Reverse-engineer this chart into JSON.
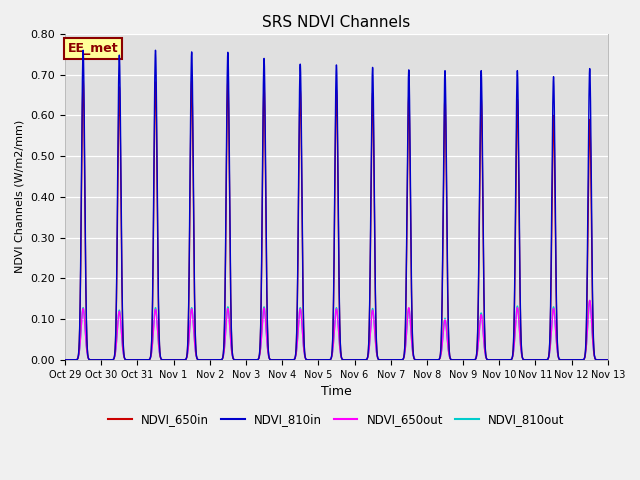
{
  "title": "SRS NDVI Channels",
  "xlabel": "Time",
  "ylabel": "NDVI Channels (W/m2/mm)",
  "ylim": [
    0.0,
    0.8
  ],
  "yticks": [
    0.0,
    0.1,
    0.2,
    0.3,
    0.4,
    0.5,
    0.6,
    0.7,
    0.8
  ],
  "bg_color": "#e0e0e0",
  "fig_color": "#f0f0f0",
  "annotation_text": "EE_met",
  "annotation_bg": "#ffff99",
  "annotation_border": "#8b0000",
  "series": {
    "NDVI_650in": {
      "color": "#cc0000",
      "lw": 1.0
    },
    "NDVI_810in": {
      "color": "#0000cc",
      "lw": 1.0
    },
    "NDVI_650out": {
      "color": "#ff00ff",
      "lw": 1.0
    },
    "NDVI_810out": {
      "color": "#00cccc",
      "lw": 1.0
    }
  },
  "x_tick_labels": [
    "Oct 29",
    "Oct 30",
    "Oct 31",
    "Nov 1",
    "Nov 2",
    "Nov 3",
    "Nov 4",
    "Nov 5",
    "Nov 6",
    "Nov 7",
    "Nov 8",
    "Nov 9",
    "Nov 10",
    "Nov 11",
    "Nov 12",
    "Nov 13"
  ],
  "num_days": 15,
  "peak_810in": [
    0.76,
    0.748,
    0.76,
    0.756,
    0.755,
    0.74,
    0.726,
    0.724,
    0.718,
    0.712,
    0.71,
    0.71,
    0.71,
    0.695,
    0.715
  ],
  "peak_650in": [
    0.685,
    0.67,
    0.682,
    0.685,
    0.685,
    0.673,
    0.662,
    0.662,
    0.655,
    0.648,
    0.645,
    0.642,
    0.64,
    0.6,
    0.59
  ],
  "peak_810out": [
    0.128,
    0.122,
    0.128,
    0.128,
    0.13,
    0.13,
    0.128,
    0.128,
    0.126,
    0.126,
    0.102,
    0.115,
    0.132,
    0.13,
    0.145
  ],
  "peak_650out": [
    0.126,
    0.119,
    0.124,
    0.125,
    0.126,
    0.127,
    0.125,
    0.125,
    0.122,
    0.128,
    0.098,
    0.111,
    0.128,
    0.126,
    0.146
  ],
  "sigma_in": 0.045,
  "sigma_out": 0.055
}
